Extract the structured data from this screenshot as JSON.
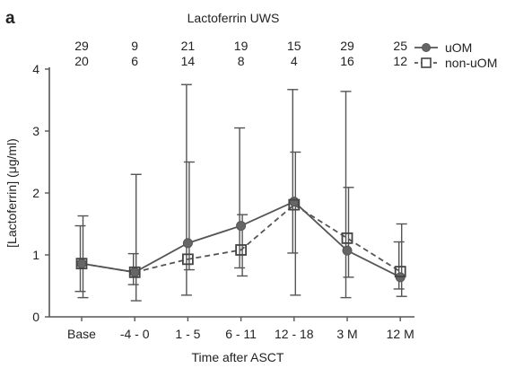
{
  "chart_data": {
    "panel_label": "a",
    "type": "line",
    "title": "Lactoferrin UWS",
    "xlabel": "Time after ASCT",
    "ylabel": "[Lactoferrin] (μg/ml)",
    "categories": [
      "Base",
      "-4 - 0",
      "1 - 5",
      "6 - 11",
      "12 - 18",
      "3 M",
      "12 M"
    ],
    "ylim": [
      0,
      4
    ],
    "yticks": [
      "0",
      "1",
      "2",
      "3",
      "4"
    ],
    "grid": false,
    "legend_position": "top-right",
    "counts": [
      [
        "29",
        "9",
        "21",
        "19",
        "15",
        "29",
        "25"
      ],
      [
        "20",
        "6",
        "14",
        "8",
        "4",
        "16",
        "12"
      ]
    ],
    "series": [
      {
        "name": "uOM",
        "marker": "circle",
        "line": "solid",
        "color": "#555555",
        "values": [
          0.86,
          0.72,
          1.19,
          1.47,
          1.86,
          1.07,
          0.64
        ],
        "error_low": [
          0.41,
          0.52,
          0.35,
          0.79,
          1.03,
          0.31,
          0.45
        ],
        "error_high": [
          1.47,
          1.02,
          3.75,
          3.05,
          3.67,
          3.64,
          1.21
        ]
      },
      {
        "name": "non-uOM",
        "marker": "square",
        "line": "dashed",
        "color": "#555555",
        "values": [
          0.86,
          0.72,
          0.93,
          1.08,
          1.81,
          1.27,
          0.73
        ],
        "error_low": [
          0.31,
          0.26,
          0.76,
          0.66,
          0.35,
          0.64,
          0.33
        ],
        "error_high": [
          1.63,
          2.3,
          2.5,
          1.65,
          2.66,
          2.09,
          1.5
        ]
      }
    ]
  }
}
